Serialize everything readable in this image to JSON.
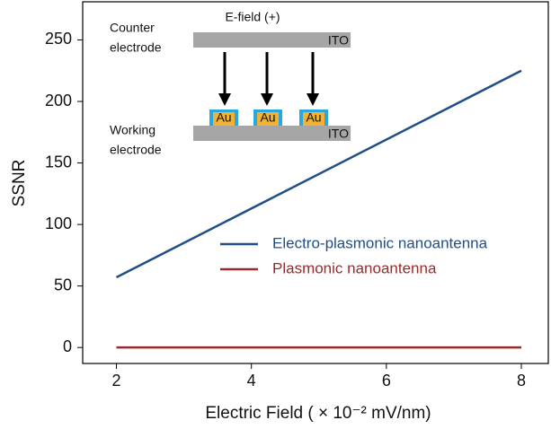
{
  "chart_data": {
    "type": "line",
    "x_label": "Electric Field ( × 10⁻² mV/nm)",
    "y_label": "SSNR",
    "x": [
      2,
      8
    ],
    "series": [
      {
        "name": "Electro-plasmonic nanoantenna",
        "color": "#1f4e89",
        "values": [
          57,
          225
        ]
      },
      {
        "name": "Plasmonic nanoantenna",
        "color": "#9b2a2a",
        "values": [
          0,
          0
        ]
      }
    ],
    "xlim": [
      1.5,
      8.4
    ],
    "ylim": [
      -13,
      281
    ],
    "xticks": [
      2,
      4,
      6,
      8
    ],
    "yticks": [
      0,
      50,
      100,
      150,
      200,
      250
    ],
    "grid": false,
    "legend": "right",
    "inset": {
      "field": "E-field (+)",
      "top_ito": "ITO",
      "bottom_ito": "ITO",
      "au": [
        "Au",
        "Au",
        "Au"
      ],
      "counter": [
        "Counter",
        "electrode"
      ],
      "working": [
        "Working",
        "electrode"
      ]
    }
  }
}
